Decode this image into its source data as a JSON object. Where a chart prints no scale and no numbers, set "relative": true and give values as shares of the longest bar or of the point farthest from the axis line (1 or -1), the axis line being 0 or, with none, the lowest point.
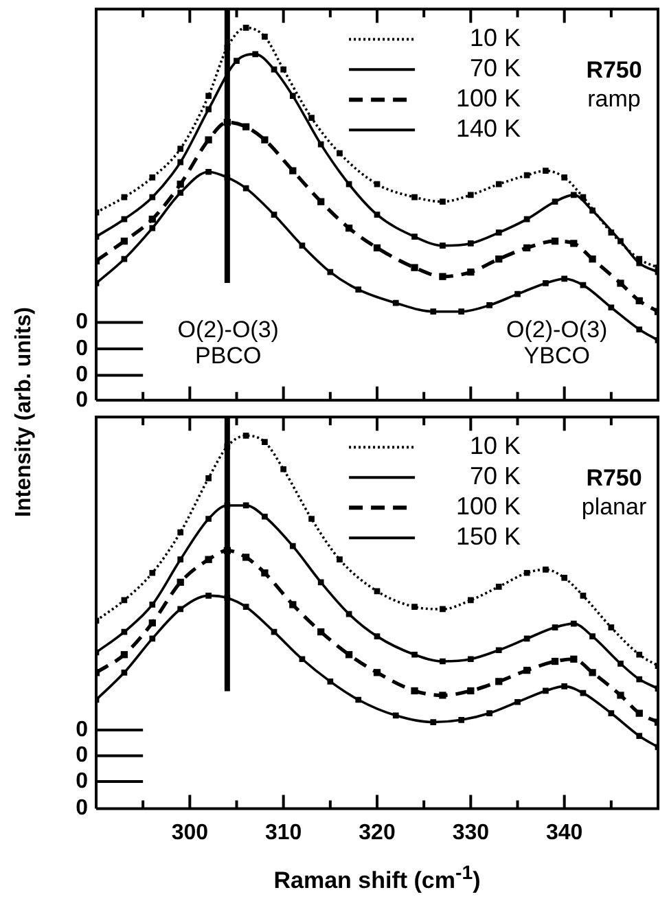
{
  "chart_data": [
    {
      "type": "line",
      "relative": true,
      "ylabel": "Intensity (arb. units)",
      "xlim": [
        290,
        350
      ],
      "xticks": [
        {
          "value": 295,
          "label": null
        },
        300,
        {
          "value": 305,
          "label": null
        },
        310,
        {
          "value": 315,
          "label": null
        },
        320,
        {
          "value": 325,
          "label": null
        },
        330,
        {
          "value": 335,
          "label": null
        },
        340,
        {
          "value": 345,
          "label": null
        }
      ],
      "tick_labels": false,
      "grid": false,
      "legend": "top right",
      "marker": "square",
      "annotations": [
        "R750",
        "ramp",
        "O(2)-O(3)\nPBCO",
        "O(2)-O(3)\nYBCO"
      ],
      "ref_lines": [
        {
          "axis": "x",
          "value": 304,
          "color": "#000000"
        },
        {
          "axis": "y",
          "value": 0.209,
          "label": "0"
        },
        {
          "axis": "y",
          "value": 0.138,
          "label": "0"
        },
        {
          "axis": "y",
          "value": 0.067,
          "label": "0"
        },
        {
          "axis": "y",
          "value": 0,
          "label": "0"
        }
      ],
      "series": [
        {
          "name": "10 K",
          "color": "#000000",
          "line_style": "dotted",
          "x": [
            290,
            293,
            296,
            299,
            302,
            304,
            306,
            308,
            310,
            313,
            316,
            320,
            324,
            327,
            330,
            333,
            336,
            338,
            340,
            342,
            345,
            348,
            350
          ],
          "values": [
            0.504,
            0.545,
            0.598,
            0.675,
            0.817,
            0.947,
            1.0,
            0.976,
            0.888,
            0.758,
            0.663,
            0.58,
            0.545,
            0.533,
            0.551,
            0.58,
            0.604,
            0.616,
            0.598,
            0.545,
            0.45,
            0.379,
            0.356
          ]
        },
        {
          "name": "70 K",
          "color": "#000000",
          "line_style": "solid",
          "x": [
            290,
            293,
            296,
            299,
            302,
            305,
            307,
            309,
            311,
            314,
            317,
            320,
            324,
            327,
            330,
            333,
            336,
            339,
            341,
            343,
            346,
            348,
            350
          ],
          "values": [
            0.439,
            0.486,
            0.545,
            0.639,
            0.781,
            0.911,
            0.929,
            0.888,
            0.817,
            0.687,
            0.58,
            0.498,
            0.439,
            0.415,
            0.421,
            0.45,
            0.486,
            0.533,
            0.551,
            0.509,
            0.427,
            0.368,
            0.344
          ]
        },
        {
          "name": "100 K",
          "color": "#000000",
          "line_style": "dashed",
          "x": [
            290,
            293,
            296,
            299,
            302,
            304,
            306,
            308,
            311,
            314,
            317,
            320,
            324,
            327,
            330,
            333,
            336,
            339,
            341,
            343,
            346,
            348,
            350
          ],
          "values": [
            0.374,
            0.427,
            0.486,
            0.58,
            0.699,
            0.746,
            0.734,
            0.699,
            0.616,
            0.533,
            0.462,
            0.409,
            0.356,
            0.332,
            0.344,
            0.379,
            0.409,
            0.427,
            0.421,
            0.379,
            0.314,
            0.267,
            0.238
          ]
        },
        {
          "name": "140 K",
          "color": "#000000",
          "line_style": "solid",
          "x": [
            290,
            293,
            296,
            299,
            302,
            304,
            306,
            309,
            312,
            315,
            318,
            322,
            326,
            329,
            332,
            335,
            338,
            340,
            342,
            345,
            348,
            350
          ],
          "values": [
            0.314,
            0.379,
            0.462,
            0.557,
            0.613,
            0.598,
            0.569,
            0.498,
            0.415,
            0.344,
            0.297,
            0.261,
            0.238,
            0.238,
            0.255,
            0.285,
            0.314,
            0.326,
            0.309,
            0.249,
            0.19,
            0.161
          ]
        }
      ]
    },
    {
      "type": "line",
      "relative": true,
      "xlabel": "Raman shift (cm$^{-1}$)",
      "xlim": [
        290,
        350
      ],
      "xticks": [
        {
          "value": 295,
          "label": null
        },
        300,
        {
          "value": 305,
          "label": null
        },
        310,
        {
          "value": 315,
          "label": null
        },
        320,
        {
          "value": 325,
          "label": null
        },
        330,
        {
          "value": 335,
          "label": null
        },
        340,
        {
          "value": 345,
          "label": null
        }
      ],
      "tick_labels": "x",
      "grid": false,
      "legend": "top right",
      "marker": "square",
      "annotations": [
        "R750",
        "planar"
      ],
      "ref_lines": [
        {
          "axis": "x",
          "value": 304,
          "color": "#000000"
        },
        {
          "axis": "y",
          "value": 0.211,
          "label": "0"
        },
        {
          "axis": "y",
          "value": 0.142,
          "label": "0"
        },
        {
          "axis": "y",
          "value": 0.073,
          "label": "0"
        },
        {
          "axis": "y",
          "value": 0,
          "label": "0"
        }
      ],
      "series": [
        {
          "name": "10 K",
          "color": "#000000",
          "line_style": "dotted",
          "x": [
            290,
            293,
            296,
            299,
            302,
            304,
            306,
            308,
            310,
            313,
            316,
            320,
            324,
            327,
            330,
            333,
            336,
            338,
            340,
            342,
            345,
            348,
            350
          ],
          "values": [
            0.504,
            0.559,
            0.632,
            0.741,
            0.886,
            0.971,
            1.0,
            0.983,
            0.91,
            0.777,
            0.668,
            0.583,
            0.541,
            0.535,
            0.559,
            0.595,
            0.632,
            0.641,
            0.619,
            0.571,
            0.486,
            0.413,
            0.383
          ]
        },
        {
          "name": "70 K",
          "color": "#000000",
          "line_style": "solid",
          "x": [
            290,
            293,
            296,
            299,
            302,
            304,
            306,
            308,
            311,
            314,
            317,
            320,
            324,
            327,
            330,
            333,
            336,
            339,
            341,
            343,
            346,
            348,
            350
          ],
          "values": [
            0.419,
            0.474,
            0.547,
            0.668,
            0.777,
            0.813,
            0.813,
            0.783,
            0.704,
            0.607,
            0.522,
            0.462,
            0.413,
            0.395,
            0.401,
            0.425,
            0.456,
            0.486,
            0.496,
            0.462,
            0.389,
            0.347,
            0.322
          ]
        },
        {
          "name": "100 K",
          "color": "#000000",
          "line_style": "dashed",
          "x": [
            290,
            293,
            296,
            299,
            302,
            304,
            306,
            308,
            311,
            314,
            317,
            320,
            324,
            327,
            330,
            333,
            336,
            339,
            341,
            343,
            346,
            348,
            350
          ],
          "values": [
            0.365,
            0.413,
            0.498,
            0.607,
            0.668,
            0.692,
            0.674,
            0.632,
            0.547,
            0.474,
            0.413,
            0.365,
            0.316,
            0.304,
            0.316,
            0.341,
            0.371,
            0.395,
            0.401,
            0.365,
            0.304,
            0.256,
            0.232
          ]
        },
        {
          "name": "150 K",
          "color": "#000000",
          "line_style": "solid",
          "x": [
            290,
            293,
            296,
            299,
            302,
            304,
            306,
            309,
            312,
            315,
            318,
            322,
            326,
            329,
            332,
            335,
            338,
            340,
            342,
            345,
            348,
            350
          ],
          "values": [
            0.292,
            0.365,
            0.456,
            0.535,
            0.571,
            0.565,
            0.541,
            0.474,
            0.401,
            0.341,
            0.292,
            0.25,
            0.232,
            0.238,
            0.256,
            0.286,
            0.316,
            0.328,
            0.31,
            0.256,
            0.195,
            0.165
          ]
        }
      ]
    }
  ]
}
